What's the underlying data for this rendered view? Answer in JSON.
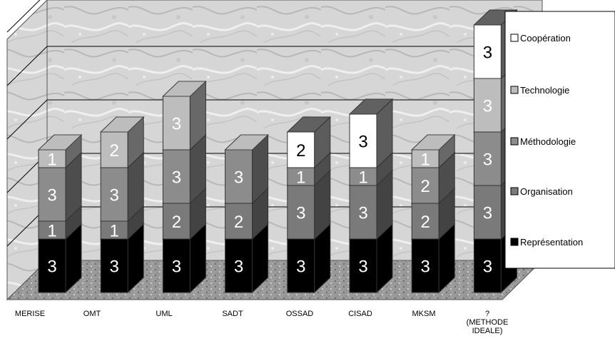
{
  "chart_data": {
    "type": "bar",
    "subtype": "3d-stacked",
    "title": "",
    "xlabel": "",
    "ylabel": "",
    "categories": [
      [
        "MERISE"
      ],
      [
        "OMT"
      ],
      [
        "UML"
      ],
      [
        "SADT"
      ],
      [
        "OSSAD"
      ],
      [
        "CISAD"
      ],
      [
        "MKSM"
      ],
      [
        "?",
        "(METHODE",
        "IDEALE)"
      ]
    ],
    "ylim": [
      0,
      18
    ],
    "grid": true,
    "legend_position": "right",
    "series": [
      {
        "name": "Représentation",
        "color": "#000000",
        "label_color": "#ffffff",
        "values": [
          3,
          3,
          3,
          3,
          3,
          3,
          3,
          3
        ]
      },
      {
        "name": "Organisation",
        "color": "#7a7a7a",
        "label_color": "#ffffff",
        "values": [
          1,
          1,
          2,
          2,
          3,
          3,
          2,
          3
        ]
      },
      {
        "name": "Méthodologie",
        "color": "#8c8c8c",
        "label_color": "#ffffff",
        "values": [
          3,
          3,
          3,
          3,
          1,
          1,
          2,
          3
        ]
      },
      {
        "name": "Technologie",
        "color": "#bdbdbd",
        "label_color": "#ffffff",
        "values": [
          1,
          2,
          3,
          0,
          0,
          0,
          1,
          3
        ]
      },
      {
        "name": "Coopération",
        "color": "#ffffff",
        "label_color": "#000000",
        "values": [
          0,
          0,
          0,
          0,
          2,
          3,
          0,
          3
        ]
      }
    ]
  }
}
